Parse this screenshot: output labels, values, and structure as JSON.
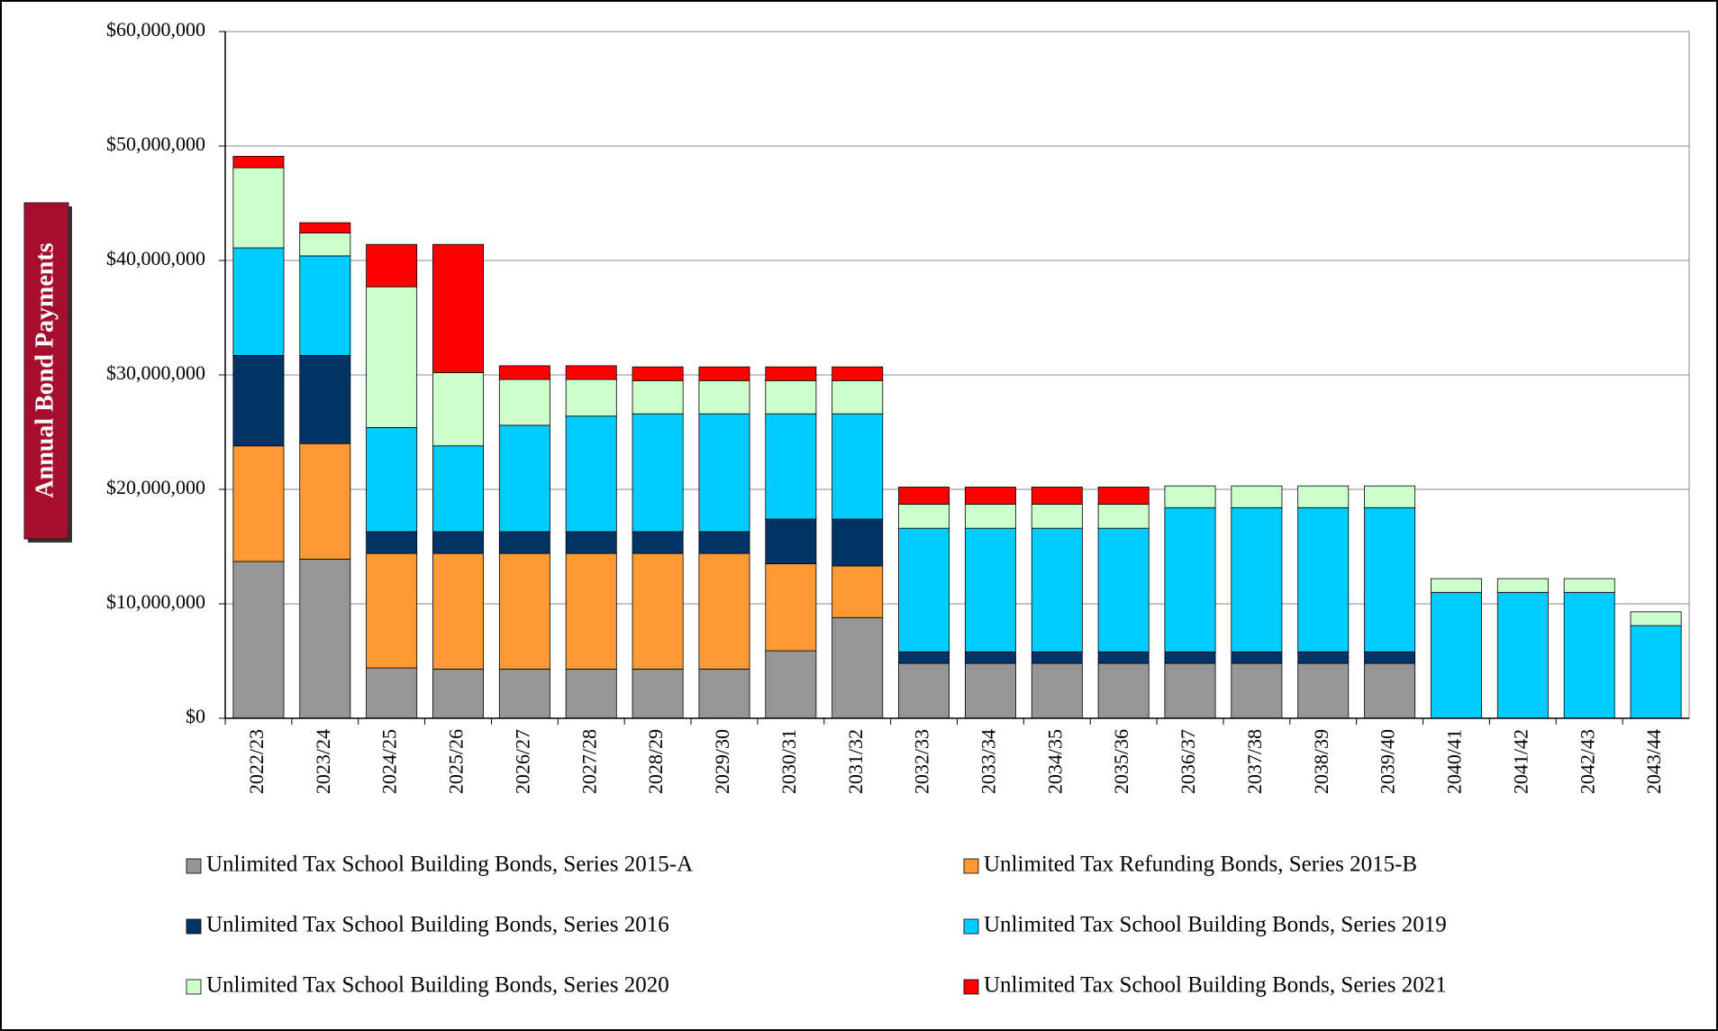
{
  "chart_data": {
    "type": "stacked_bar",
    "y_axis_label": "Annual Bond Payments",
    "categories": [
      "2022/23",
      "2023/24",
      "2024/25",
      "2025/26",
      "2026/27",
      "2027/28",
      "2028/29",
      "2029/30",
      "2030/31",
      "2031/32",
      "2032/33",
      "2033/34",
      "2034/35",
      "2035/36",
      "2036/37",
      "2037/38",
      "2038/39",
      "2039/40",
      "2040/41",
      "2041/42",
      "2042/43",
      "2043/44"
    ],
    "series": [
      {
        "name": "Unlimited Tax School Building Bonds, Series 2015-A",
        "color": "#969696",
        "values": [
          13700000,
          13900000,
          4400000,
          4300000,
          4300000,
          4300000,
          4300000,
          4300000,
          5900000,
          8800000,
          4800000,
          4800000,
          4800000,
          4800000,
          4800000,
          4800000,
          4800000,
          4800000,
          0,
          0,
          0,
          0
        ]
      },
      {
        "name": "Unlimited Tax Refunding Bonds, Series 2015-B",
        "color": "#ff9933",
        "values": [
          10100000,
          10100000,
          10000000,
          10100000,
          10100000,
          10100000,
          10100000,
          10100000,
          7600000,
          4500000,
          0,
          0,
          0,
          0,
          0,
          0,
          0,
          0,
          0,
          0,
          0,
          0
        ]
      },
      {
        "name": "Unlimited Tax School Building Bonds, Series 2016",
        "color": "#003366",
        "values": [
          7900000,
          7700000,
          1900000,
          1900000,
          1900000,
          1900000,
          1900000,
          1900000,
          3900000,
          4100000,
          1000000,
          1000000,
          1000000,
          1000000,
          1000000,
          1000000,
          1000000,
          1000000,
          0,
          0,
          0,
          0
        ]
      },
      {
        "name": "Unlimited Tax School Building Bonds, Series 2019",
        "color": "#00ccff",
        "values": [
          9400000,
          8700000,
          9100000,
          7500000,
          9300000,
          10100000,
          10300000,
          10300000,
          9200000,
          9200000,
          10800000,
          10800000,
          10800000,
          10800000,
          12600000,
          12600000,
          12600000,
          12600000,
          11000000,
          11000000,
          11000000,
          8100000
        ]
      },
      {
        "name": "Unlimited Tax School Building Bonds, Series 2020",
        "color": "#ccffcc",
        "values": [
          7000000,
          2000000,
          12300000,
          6400000,
          4000000,
          3200000,
          2900000,
          2900000,
          2900000,
          2900000,
          2100000,
          2100000,
          2100000,
          2100000,
          1900000,
          1900000,
          1900000,
          1900000,
          1200000,
          1200000,
          1200000,
          1200000
        ]
      },
      {
        "name": "Unlimited Tax School Building Bonds, Series 2021",
        "color": "#ff0000",
        "values": [
          1000000,
          900000,
          3700000,
          11200000,
          1200000,
          1200000,
          1200000,
          1200000,
          1200000,
          1200000,
          1500000,
          1500000,
          1500000,
          1500000,
          0,
          0,
          0,
          0,
          0,
          0,
          0,
          0
        ]
      }
    ],
    "ylim": [
      0,
      60000000
    ],
    "yticks": [
      {
        "value": 0,
        "label": "$0"
      },
      {
        "value": 10000000,
        "label": "$10,000,000"
      },
      {
        "value": 20000000,
        "label": "$20,000,000"
      },
      {
        "value": 30000000,
        "label": "$30,000,000"
      },
      {
        "value": 40000000,
        "label": "$40,000,000"
      },
      {
        "value": 50000000,
        "label": "$50,000,000"
      },
      {
        "value": 60000000,
        "label": "$60,000,000"
      }
    ],
    "grid": true
  }
}
